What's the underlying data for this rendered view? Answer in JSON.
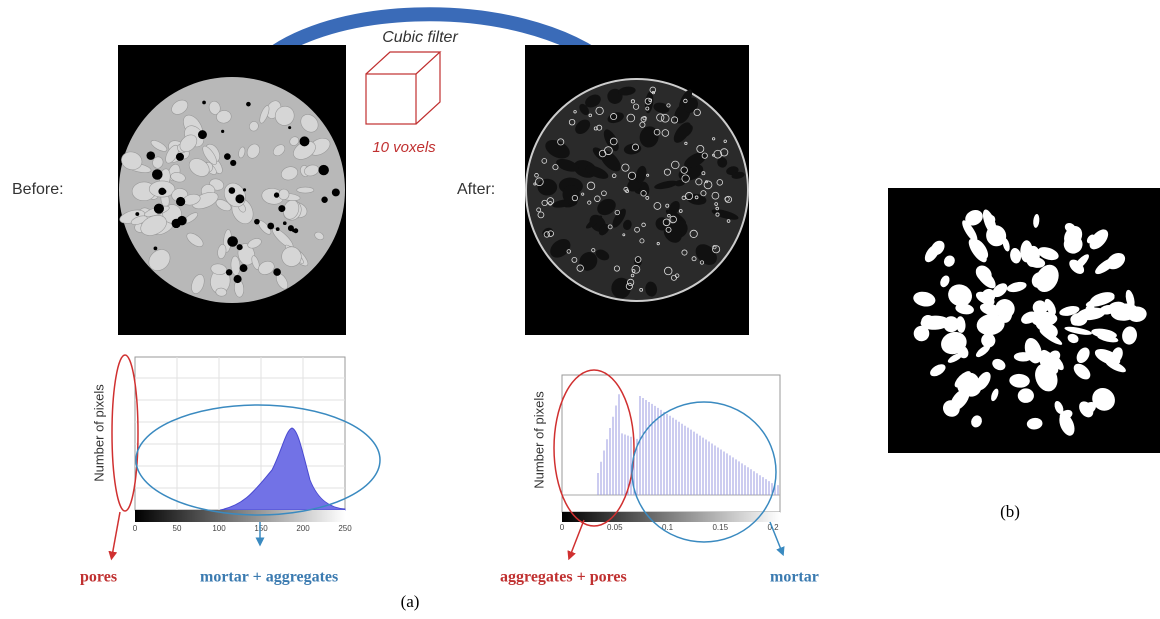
{
  "figure": {
    "arrow_label": "Cubic filter",
    "cube_label": "10 voxels",
    "before_label": "Before:",
    "after_label": "After:",
    "left_histogram": {
      "y_label": "Number of pixels",
      "x_ticks": [
        "0",
        "50",
        "100",
        "150",
        "200",
        "250"
      ],
      "annotation_red": "pores",
      "annotation_blue": "mortar + aggregates"
    },
    "right_histogram": {
      "y_label": "Number of pixels",
      "x_ticks": [
        "0",
        "0.05",
        "0.1",
        "0.15",
        "0.2"
      ],
      "annotation_red": "aggregates + pores",
      "annotation_blue": "mortar"
    },
    "caption_a": "(a)",
    "caption_b": "(b)"
  }
}
